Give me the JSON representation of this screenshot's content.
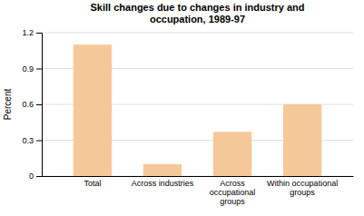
{
  "chart_data": {
    "type": "bar",
    "title": "Skill changes due to changes in industry and\noccupation, 1989-97",
    "categories": [
      "Total",
      "Across industries",
      "Across\noccupational\ngroups",
      "Within occupational\ngroups"
    ],
    "values": [
      1.1,
      0.1,
      0.37,
      0.6
    ],
    "color": "#F5C89A",
    "ylabel": "Percent",
    "ylim": [
      0,
      1.2
    ],
    "yticks": [
      0,
      0.3,
      0.6,
      0.9,
      1.2
    ],
    "grid": true
  }
}
